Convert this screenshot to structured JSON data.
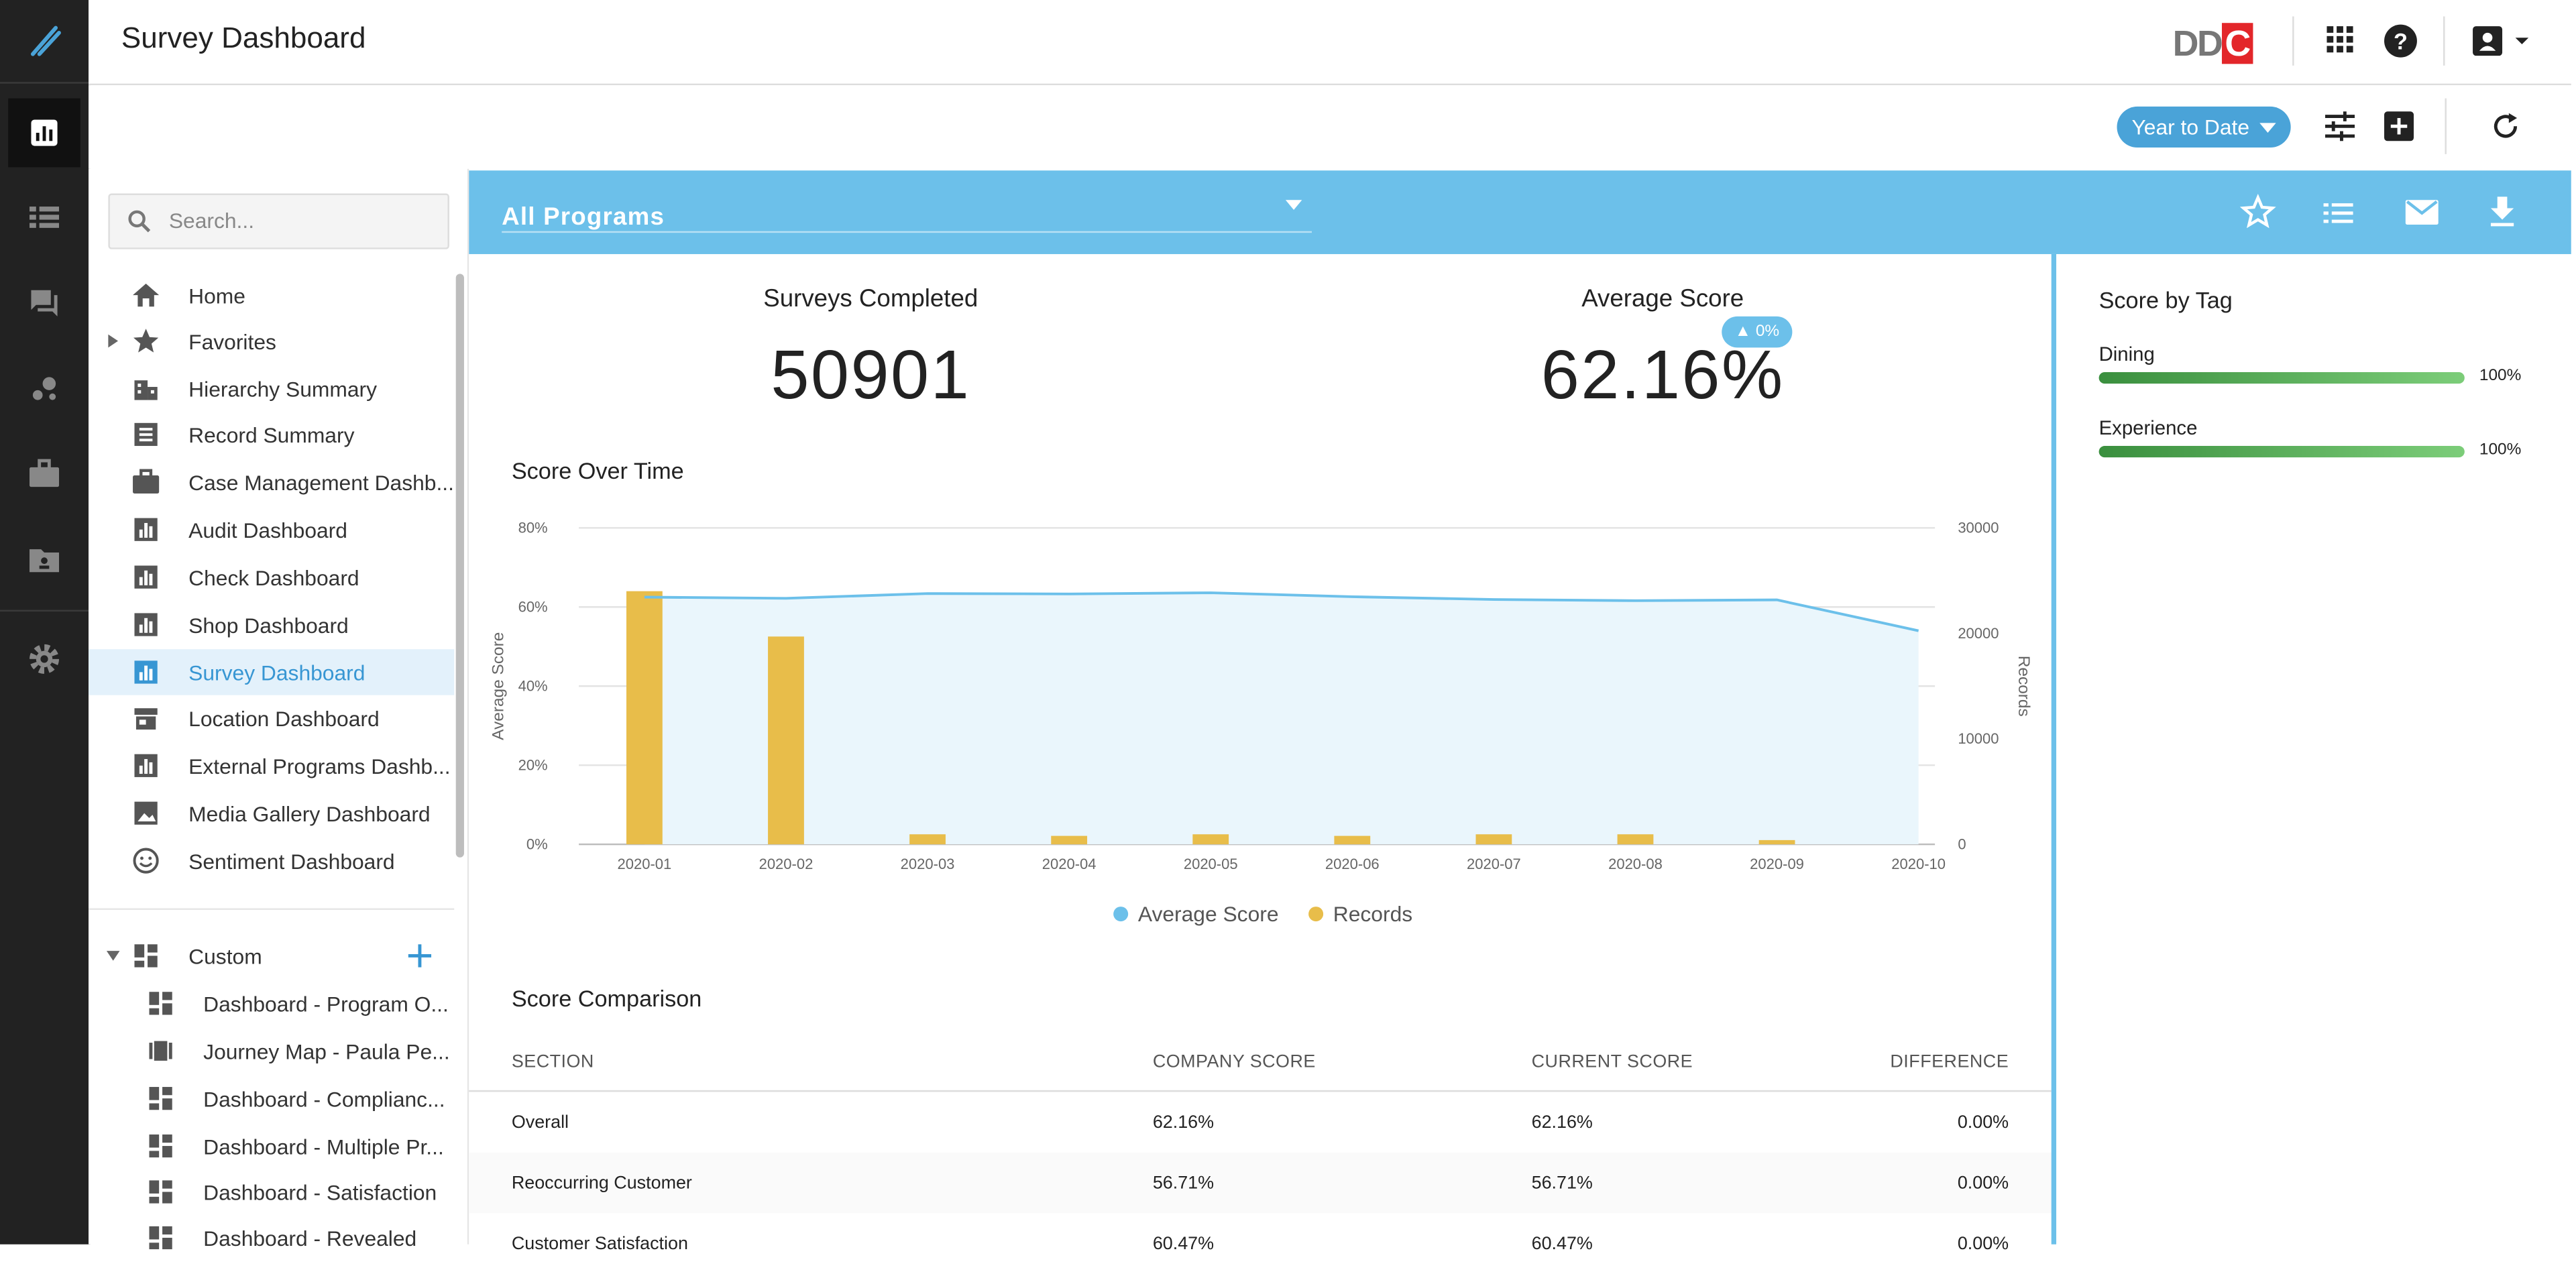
{
  "header": {
    "title": "Survey Dashboard",
    "logo_text_a": "DD",
    "logo_text_b": "C"
  },
  "toolbar": {
    "date_range": "Year to Date"
  },
  "sidebar": {
    "search_placeholder": "Search...",
    "items": [
      {
        "label": "Home",
        "icon": "home-icon"
      },
      {
        "label": "Favorites",
        "icon": "star-icon"
      },
      {
        "label": "Hierarchy Summary",
        "icon": "hierarchy-icon"
      },
      {
        "label": "Record Summary",
        "icon": "document-icon"
      },
      {
        "label": "Case Management Dashb...",
        "icon": "briefcase-icon"
      },
      {
        "label": "Audit Dashboard",
        "icon": "chart-icon"
      },
      {
        "label": "Check Dashboard",
        "icon": "chart-icon"
      },
      {
        "label": "Shop Dashboard",
        "icon": "chart-icon"
      },
      {
        "label": "Survey Dashboard",
        "icon": "chart-icon"
      },
      {
        "label": "Location Dashboard",
        "icon": "store-icon"
      },
      {
        "label": "External Programs Dashb...",
        "icon": "chart-icon"
      },
      {
        "label": "Media Gallery Dashboard",
        "icon": "image-icon"
      },
      {
        "label": "Sentiment Dashboard",
        "icon": "smiley-icon"
      }
    ],
    "custom_label": "Custom",
    "custom_items": [
      {
        "label": "Dashboard - Program O..."
      },
      {
        "label": "Journey Map - Paula Pe..."
      },
      {
        "label": "Dashboard - Complianc..."
      },
      {
        "label": "Dashboard - Multiple Pr..."
      },
      {
        "label": "Dashboard - Satisfaction"
      },
      {
        "label": "Dashboard - Revealed"
      }
    ]
  },
  "banner": {
    "program": "All Programs"
  },
  "kpis": {
    "surveys_title": "Surveys Completed",
    "surveys_value": "50901",
    "avg_title": "Average Score",
    "avg_value": "62.16%",
    "avg_delta": "0%"
  },
  "score_over_time_title": "Score Over Time",
  "chart_data": {
    "type": "bar",
    "title": "Score Over Time",
    "categories": [
      "2020-01",
      "2020-02",
      "2020-03",
      "2020-04",
      "2020-05",
      "2020-06",
      "2020-07",
      "2020-08",
      "2020-09",
      "2020-10"
    ],
    "series": [
      {
        "name": "Average Score",
        "type": "area",
        "axis": "left",
        "unit": "%",
        "color": "#6cc0ea",
        "values": [
          62.5,
          62.2,
          63.4,
          63.3,
          63.6,
          62.6,
          61.9,
          61.6,
          61.8,
          54.0
        ]
      },
      {
        "name": "Records",
        "type": "bar",
        "axis": "right",
        "color": "#e8bd4a",
        "values": [
          24000,
          19700,
          950,
          800,
          950,
          800,
          950,
          950,
          400,
          null
        ]
      }
    ],
    "ylabel_left": "Average Score",
    "ylabel_right": "Records",
    "yticks_left": [
      "0%",
      "20%",
      "40%",
      "60%",
      "80%"
    ],
    "ylim_left": [
      0,
      80
    ],
    "yticks_right": [
      "0",
      "10000",
      "20000",
      "30000"
    ],
    "ylim_right": [
      0,
      30000
    ],
    "legend_position": "bottom",
    "grid": true
  },
  "comparison": {
    "title": "Score Comparison",
    "columns": [
      "SECTION",
      "COMPANY SCORE",
      "CURRENT SCORE",
      "DIFFERENCE"
    ],
    "rows": [
      [
        "Overall",
        "62.16%",
        "62.16%",
        "0.00%"
      ],
      [
        "Reoccurring Customer",
        "56.71%",
        "56.71%",
        "0.00%"
      ],
      [
        "Customer Satisfaction",
        "60.47%",
        "60.47%",
        "0.00%"
      ]
    ]
  },
  "score_by_tag": {
    "title": "Score by Tag",
    "tags": [
      {
        "name": "Dining",
        "value": "100%",
        "fraction": 1.0
      },
      {
        "name": "Experience",
        "value": "100%",
        "fraction": 1.0
      }
    ]
  }
}
